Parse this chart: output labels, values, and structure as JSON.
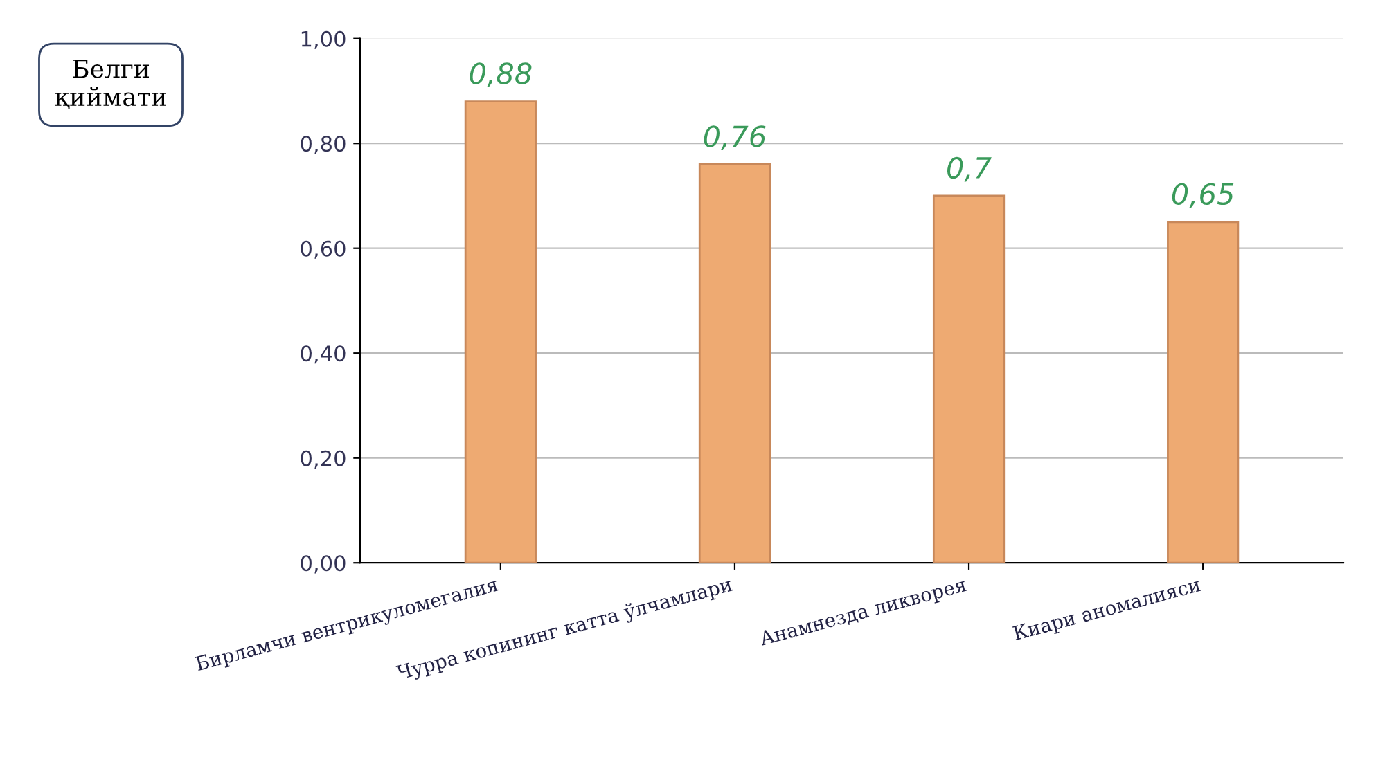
{
  "chart_data": {
    "type": "bar",
    "annotations": [
      "Белги\nқиймати"
    ],
    "categories": [
      "Бирламчи вентрикуломегалия",
      "Чурра копининг катта ўлчамлари",
      "Анамнезда ликворея",
      "Киари аномалияси"
    ],
    "values": [
      0.88,
      0.76,
      0.7,
      0.65
    ],
    "color": "#eeaa72",
    "value_labels": [
      "0,88",
      "0,76",
      "0,7",
      "0,65"
    ],
    "ylim": [
      0,
      1
    ],
    "yticks": [
      {
        "value": 0,
        "label": "0,00"
      },
      {
        "value": 0.2,
        "label": "0,20"
      },
      {
        "value": 0.4,
        "label": "0,40"
      },
      {
        "value": 0.6,
        "label": "0,60"
      },
      {
        "value": 0.8,
        "label": "0,80"
      },
      {
        "value": 1,
        "label": "1,00"
      }
    ],
    "grid": "y"
  }
}
